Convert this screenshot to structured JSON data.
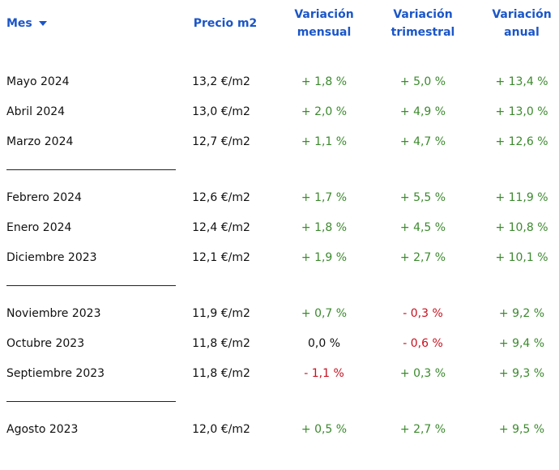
{
  "header": {
    "mes": "Mes",
    "precio": "Precio m2",
    "mensual": [
      "Variación",
      "mensual"
    ],
    "trimestral": [
      "Variación",
      "trimestral"
    ],
    "anual": [
      "Variación",
      "anual"
    ]
  },
  "colors": {
    "header": "#1b56c8",
    "positive": "#3c8a2e",
    "negative": "#c8101e"
  },
  "rows": [
    {
      "mes": "Mayo 2024",
      "precio": "13,2 €/m2",
      "mensual": "+ 1,8 %",
      "trimestral": "+ 5,0 %",
      "anual": "+ 13,4 %"
    },
    {
      "mes": "Abril 2024",
      "precio": "13,0 €/m2",
      "mensual": "+ 2,0 %",
      "trimestral": "+ 4,9 %",
      "anual": "+ 13,0 %"
    },
    {
      "mes": "Marzo 2024",
      "precio": "12,7 €/m2",
      "mensual": "+ 1,1 %",
      "trimestral": "+ 4,7 %",
      "anual": "+ 12,6 %"
    },
    {
      "mes": "Febrero 2024",
      "precio": "12,6 €/m2",
      "mensual": "+ 1,7 %",
      "trimestral": "+ 5,5 %",
      "anual": "+ 11,9 %"
    },
    {
      "mes": "Enero 2024",
      "precio": "12,4 €/m2",
      "mensual": "+ 1,8 %",
      "trimestral": "+ 4,5 %",
      "anual": "+ 10,8 %"
    },
    {
      "mes": "Diciembre 2023",
      "precio": "12,1 €/m2",
      "mensual": "+ 1,9 %",
      "trimestral": "+ 2,7 %",
      "anual": "+ 10,1 %"
    },
    {
      "mes": "Noviembre 2023",
      "precio": "11,9 €/m2",
      "mensual": "+ 0,7 %",
      "trimestral": "- 0,3 %",
      "anual": "+ 9,2 %"
    },
    {
      "mes": "Octubre 2023",
      "precio": "11,8 €/m2",
      "mensual": "0,0 %",
      "trimestral": "- 0,6 %",
      "anual": "+ 9,4 %"
    },
    {
      "mes": "Septiembre 2023",
      "precio": "11,8 €/m2",
      "mensual": "- 1,1 %",
      "trimestral": "+ 0,3 %",
      "anual": "+ 9,3 %"
    },
    {
      "mes": "Agosto 2023",
      "precio": "12,0 €/m2",
      "mensual": "+ 0,5 %",
      "trimestral": "+ 2,7 %",
      "anual": "+ 9,5 %"
    }
  ]
}
